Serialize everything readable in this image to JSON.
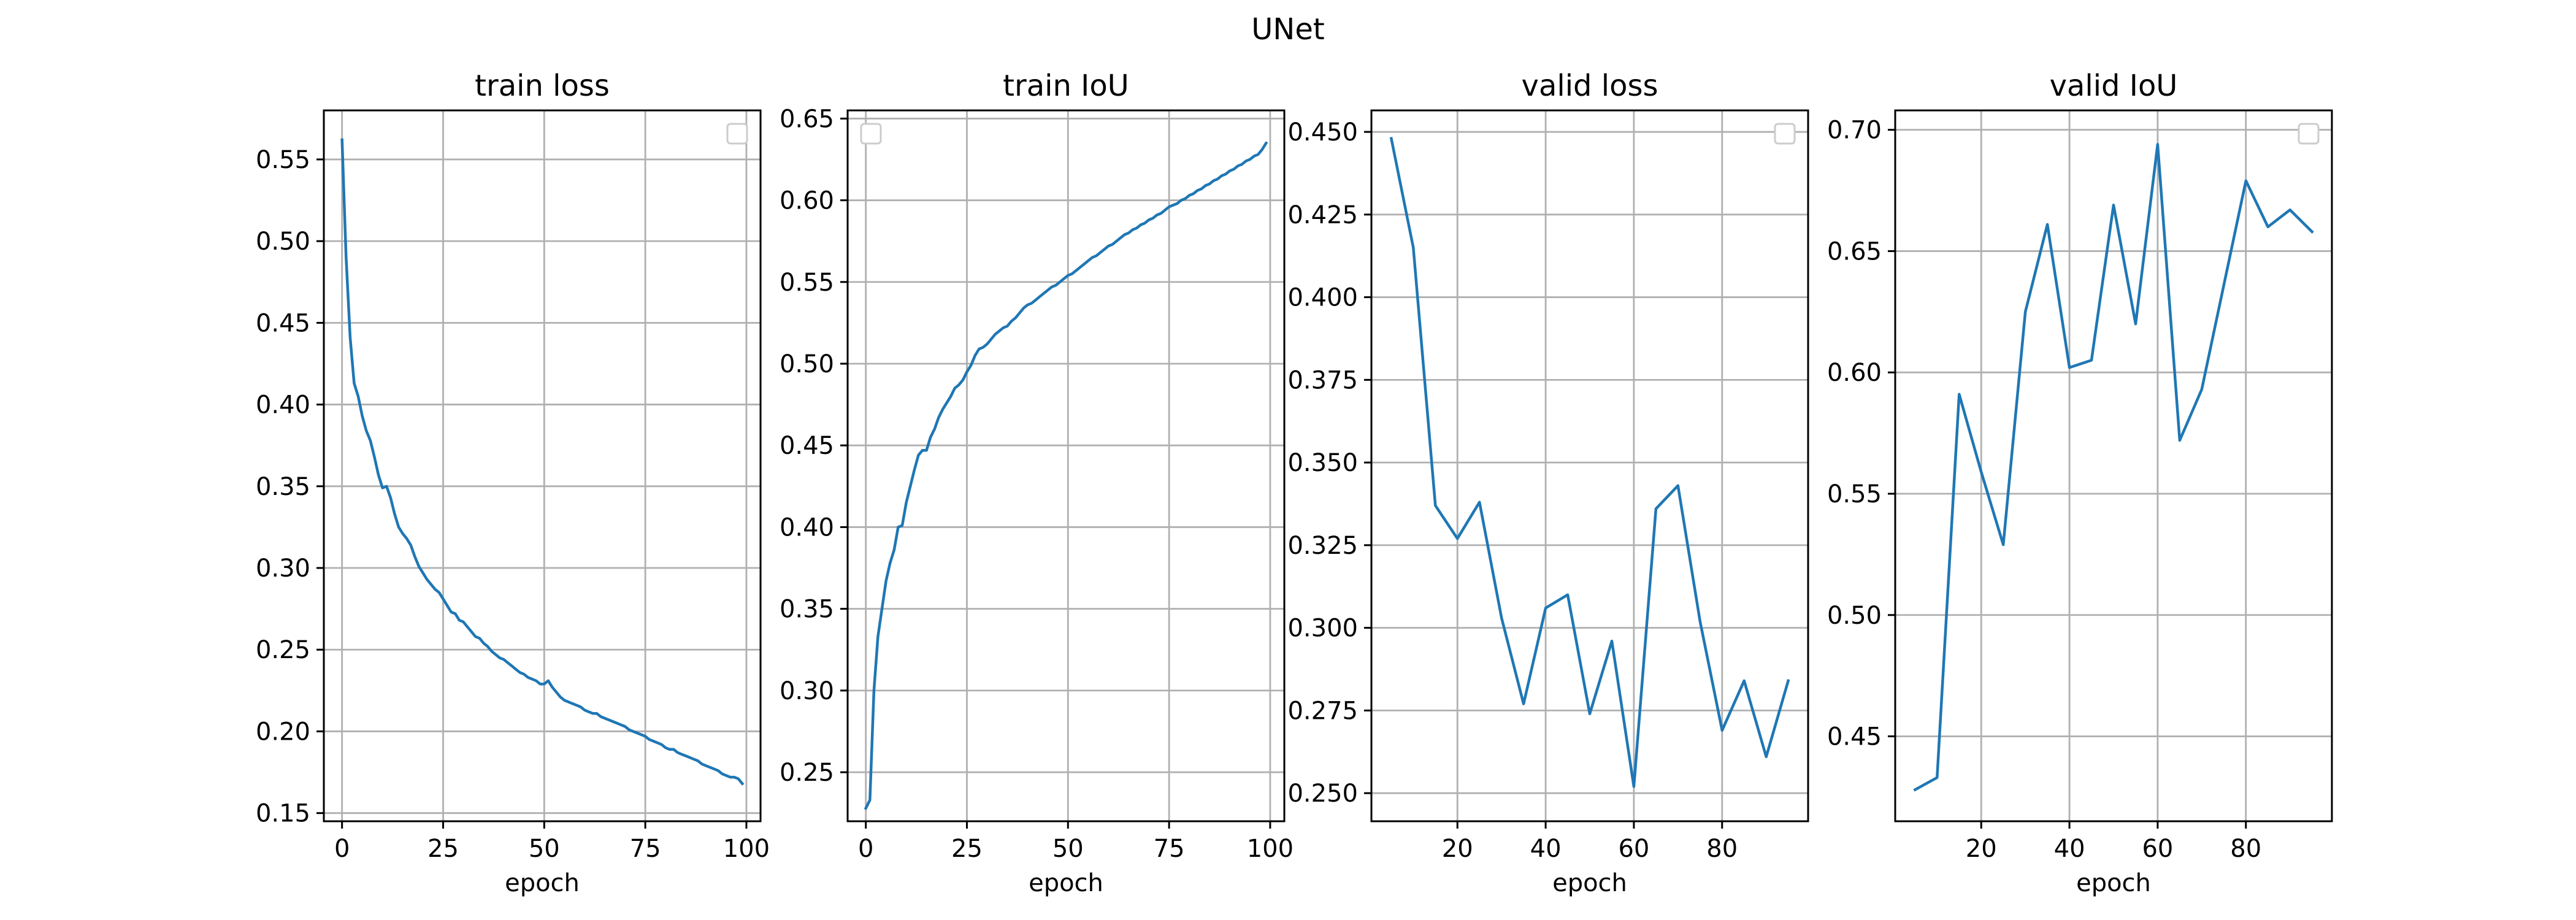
{
  "figure": {
    "suptitle": "UNet",
    "line_color": "#1f77b4"
  },
  "chart_data": [
    {
      "type": "line",
      "title": "train loss",
      "xlabel": "epoch",
      "ylabel": "",
      "xlim": [
        -4.5,
        103.5
      ],
      "ylim": [
        0.145,
        0.58
      ],
      "xticks": [
        0,
        25,
        50,
        75,
        100
      ],
      "yticks": [
        0.15,
        0.2,
        0.25,
        0.3,
        0.35,
        0.4,
        0.45,
        0.5,
        0.55
      ],
      "tick_decimals": 2,
      "grid": true,
      "legend": "top-right (empty)",
      "x": [
        0,
        1,
        2,
        3,
        4,
        5,
        6,
        7,
        8,
        9,
        10,
        11,
        12,
        13,
        14,
        15,
        16,
        17,
        18,
        19,
        20,
        21,
        22,
        23,
        24,
        25,
        26,
        27,
        28,
        29,
        30,
        31,
        32,
        33,
        34,
        35,
        36,
        37,
        38,
        39,
        40,
        41,
        42,
        43,
        44,
        45,
        46,
        47,
        48,
        49,
        50,
        51,
        52,
        53,
        54,
        55,
        56,
        57,
        58,
        59,
        60,
        61,
        62,
        63,
        64,
        65,
        66,
        67,
        68,
        69,
        70,
        71,
        72,
        73,
        74,
        75,
        76,
        77,
        78,
        79,
        80,
        81,
        82,
        83,
        84,
        85,
        86,
        87,
        88,
        89,
        90,
        91,
        92,
        93,
        94,
        95,
        96,
        97,
        98,
        99
      ],
      "series": [
        {
          "values": [
            0.562,
            0.49,
            0.441,
            0.413,
            0.405,
            0.393,
            0.384,
            0.378,
            0.368,
            0.357,
            0.349,
            0.35,
            0.343,
            0.333,
            0.325,
            0.321,
            0.318,
            0.314,
            0.307,
            0.301,
            0.297,
            0.293,
            0.29,
            0.287,
            0.285,
            0.281,
            0.277,
            0.273,
            0.272,
            0.268,
            0.267,
            0.264,
            0.261,
            0.258,
            0.257,
            0.254,
            0.252,
            0.249,
            0.247,
            0.245,
            0.244,
            0.242,
            0.24,
            0.238,
            0.236,
            0.235,
            0.233,
            0.232,
            0.231,
            0.229,
            0.229,
            0.231,
            0.227,
            0.224,
            0.221,
            0.219,
            0.218,
            0.217,
            0.216,
            0.215,
            0.213,
            0.212,
            0.211,
            0.211,
            0.209,
            0.208,
            0.207,
            0.206,
            0.205,
            0.204,
            0.203,
            0.201,
            0.2,
            0.199,
            0.198,
            0.197,
            0.195,
            0.194,
            0.193,
            0.192,
            0.19,
            0.189,
            0.189,
            0.187,
            0.186,
            0.185,
            0.184,
            0.183,
            0.182,
            0.18,
            0.179,
            0.178,
            0.177,
            0.176,
            0.174,
            0.173,
            0.172,
            0.172,
            0.171,
            0.168
          ]
        }
      ]
    },
    {
      "type": "line",
      "title": "train IoU",
      "xlabel": "epoch",
      "ylabel": "",
      "xlim": [
        -4.5,
        103.5
      ],
      "ylim": [
        0.22,
        0.655
      ],
      "xticks": [
        0,
        25,
        50,
        75,
        100
      ],
      "yticks": [
        0.25,
        0.3,
        0.35,
        0.4,
        0.45,
        0.5,
        0.55,
        0.6,
        0.65
      ],
      "tick_decimals": 2,
      "grid": true,
      "legend": "top-left (empty)",
      "x": [
        0,
        1,
        2,
        3,
        4,
        5,
        6,
        7,
        8,
        9,
        10,
        11,
        12,
        13,
        14,
        15,
        16,
        17,
        18,
        19,
        20,
        21,
        22,
        23,
        24,
        25,
        26,
        27,
        28,
        29,
        30,
        31,
        32,
        33,
        34,
        35,
        36,
        37,
        38,
        39,
        40,
        41,
        42,
        43,
        44,
        45,
        46,
        47,
        48,
        49,
        50,
        51,
        52,
        53,
        54,
        55,
        56,
        57,
        58,
        59,
        60,
        61,
        62,
        63,
        64,
        65,
        66,
        67,
        68,
        69,
        70,
        71,
        72,
        73,
        74,
        75,
        76,
        77,
        78,
        79,
        80,
        81,
        82,
        83,
        84,
        85,
        86,
        87,
        88,
        89,
        90,
        91,
        92,
        93,
        94,
        95,
        96,
        97,
        98,
        99
      ],
      "series": [
        {
          "values": [
            0.228,
            0.233,
            0.3,
            0.333,
            0.35,
            0.367,
            0.378,
            0.386,
            0.4,
            0.401,
            0.415,
            0.425,
            0.435,
            0.444,
            0.447,
            0.447,
            0.455,
            0.46,
            0.467,
            0.472,
            0.476,
            0.48,
            0.485,
            0.487,
            0.49,
            0.495,
            0.499,
            0.505,
            0.509,
            0.51,
            0.512,
            0.515,
            0.518,
            0.52,
            0.522,
            0.523,
            0.526,
            0.528,
            0.531,
            0.534,
            0.536,
            0.537,
            0.539,
            0.541,
            0.543,
            0.545,
            0.547,
            0.548,
            0.55,
            0.552,
            0.554,
            0.555,
            0.557,
            0.559,
            0.561,
            0.563,
            0.565,
            0.566,
            0.568,
            0.57,
            0.572,
            0.573,
            0.575,
            0.577,
            0.579,
            0.58,
            0.582,
            0.583,
            0.585,
            0.586,
            0.588,
            0.589,
            0.591,
            0.592,
            0.594,
            0.596,
            0.597,
            0.598,
            0.6,
            0.601,
            0.603,
            0.604,
            0.606,
            0.607,
            0.609,
            0.61,
            0.612,
            0.613,
            0.615,
            0.616,
            0.618,
            0.619,
            0.621,
            0.622,
            0.624,
            0.625,
            0.627,
            0.628,
            0.631,
            0.635
          ]
        }
      ]
    },
    {
      "type": "line",
      "title": "valid loss",
      "xlabel": "epoch",
      "ylabel": "",
      "xlim": [
        0.5,
        99.5
      ],
      "ylim": [
        0.2415,
        0.4565
      ],
      "xticks": [
        20,
        40,
        60,
        80
      ],
      "yticks": [
        0.25,
        0.275,
        0.3,
        0.325,
        0.35,
        0.375,
        0.4,
        0.425,
        0.45
      ],
      "tick_decimals": 3,
      "grid": true,
      "legend": "top-right (empty)",
      "x": [
        5,
        10,
        15,
        20,
        25,
        30,
        35,
        40,
        45,
        50,
        55,
        60,
        65,
        70,
        75,
        80,
        85,
        90,
        95
      ],
      "series": [
        {
          "values": [
            0.448,
            0.415,
            0.337,
            0.327,
            0.338,
            0.303,
            0.277,
            0.306,
            0.31,
            0.274,
            0.296,
            0.252,
            0.336,
            0.343,
            0.302,
            0.269,
            0.284,
            0.261,
            0.284
          ]
        }
      ]
    },
    {
      "type": "line",
      "title": "valid IoU",
      "xlabel": "epoch",
      "ylabel": "",
      "xlim": [
        0.5,
        99.5
      ],
      "ylim": [
        0.415,
        0.708
      ],
      "xticks": [
        20,
        40,
        60,
        80
      ],
      "yticks": [
        0.45,
        0.5,
        0.55,
        0.6,
        0.65,
        0.7
      ],
      "tick_decimals": 2,
      "grid": true,
      "legend": "top-right (empty)",
      "x": [
        5,
        10,
        15,
        20,
        25,
        30,
        35,
        40,
        45,
        50,
        55,
        60,
        65,
        70,
        75,
        80,
        85,
        90,
        95
      ],
      "series": [
        {
          "values": [
            0.428,
            0.433,
            0.591,
            0.559,
            0.529,
            0.625,
            0.661,
            0.602,
            0.605,
            0.669,
            0.62,
            0.694,
            0.572,
            0.593,
            0.636,
            0.679,
            0.66,
            0.667,
            0.658
          ]
        }
      ]
    }
  ]
}
